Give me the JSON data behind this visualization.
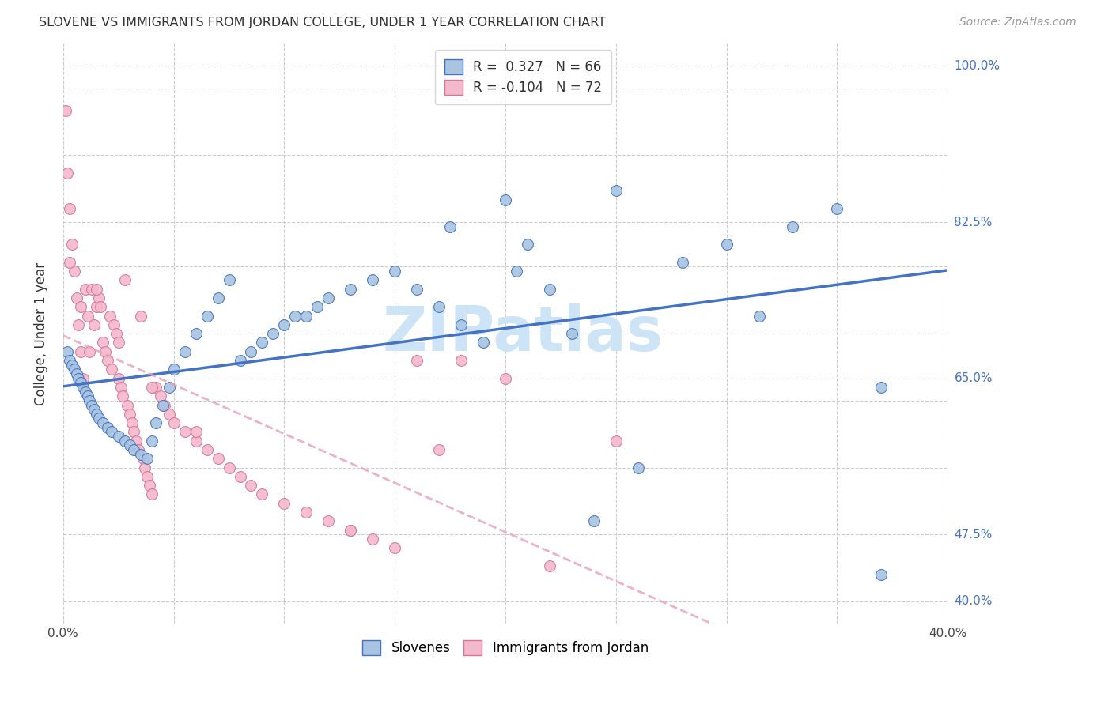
{
  "title": "SLOVENE VS IMMIGRANTS FROM JORDAN COLLEGE, UNDER 1 YEAR CORRELATION CHART",
  "source": "Source: ZipAtlas.com",
  "ylabel": "College, Under 1 year",
  "xlim": [
    0.0,
    0.4
  ],
  "ylim": [
    0.375,
    1.025
  ],
  "color_slovene_fill": "#a8c4e0",
  "color_slovene_edge": "#4472c4",
  "color_jordan_fill": "#f4b8cb",
  "color_jordan_edge": "#d4759a",
  "color_slovene_line": "#4472c4",
  "color_jordan_line": "#e8a0b8",
  "watermark_color": "#cce4f5",
  "legend_r1": "R =  0.327   N = 66",
  "legend_r2": "R = -0.104   N = 72",
  "background_color": "#ffffff",
  "slovene_x": [
    0.002,
    0.003,
    0.004,
    0.005,
    0.006,
    0.007,
    0.008,
    0.009,
    0.01,
    0.011,
    0.012,
    0.013,
    0.014,
    0.015,
    0.016,
    0.018,
    0.02,
    0.022,
    0.025,
    0.028,
    0.03,
    0.032,
    0.035,
    0.038,
    0.04,
    0.042,
    0.045,
    0.048,
    0.05,
    0.055,
    0.06,
    0.065,
    0.07,
    0.075,
    0.08,
    0.09,
    0.095,
    0.1,
    0.11,
    0.115,
    0.12,
    0.13,
    0.14,
    0.15,
    0.16,
    0.17,
    0.18,
    0.19,
    0.2,
    0.21,
    0.22,
    0.23,
    0.25,
    0.26,
    0.28,
    0.3,
    0.315,
    0.33,
    0.35,
    0.37,
    0.085,
    0.105,
    0.175,
    0.205,
    0.24,
    0.37
  ],
  "slovene_y": [
    0.68,
    0.67,
    0.665,
    0.66,
    0.655,
    0.65,
    0.645,
    0.64,
    0.635,
    0.63,
    0.625,
    0.62,
    0.615,
    0.61,
    0.605,
    0.6,
    0.595,
    0.59,
    0.585,
    0.58,
    0.575,
    0.57,
    0.565,
    0.56,
    0.58,
    0.6,
    0.62,
    0.64,
    0.66,
    0.68,
    0.7,
    0.72,
    0.74,
    0.76,
    0.67,
    0.69,
    0.7,
    0.71,
    0.72,
    0.73,
    0.74,
    0.75,
    0.76,
    0.77,
    0.75,
    0.73,
    0.71,
    0.69,
    0.85,
    0.8,
    0.75,
    0.7,
    0.86,
    0.55,
    0.78,
    0.8,
    0.72,
    0.82,
    0.84,
    0.64,
    0.68,
    0.72,
    0.82,
    0.77,
    0.49,
    0.43
  ],
  "jordan_x": [
    0.001,
    0.002,
    0.003,
    0.004,
    0.005,
    0.006,
    0.007,
    0.008,
    0.009,
    0.01,
    0.011,
    0.012,
    0.013,
    0.014,
    0.015,
    0.016,
    0.017,
    0.018,
    0.019,
    0.02,
    0.021,
    0.022,
    0.023,
    0.024,
    0.025,
    0.026,
    0.027,
    0.028,
    0.029,
    0.03,
    0.031,
    0.032,
    0.033,
    0.034,
    0.035,
    0.036,
    0.037,
    0.038,
    0.039,
    0.04,
    0.042,
    0.044,
    0.046,
    0.048,
    0.05,
    0.055,
    0.06,
    0.065,
    0.07,
    0.075,
    0.08,
    0.085,
    0.09,
    0.1,
    0.11,
    0.12,
    0.13,
    0.14,
    0.15,
    0.16,
    0.17,
    0.18,
    0.2,
    0.22,
    0.003,
    0.008,
    0.015,
    0.025,
    0.04,
    0.06,
    0.13,
    0.25
  ],
  "jordan_y": [
    0.95,
    0.88,
    0.84,
    0.8,
    0.77,
    0.74,
    0.71,
    0.68,
    0.65,
    0.75,
    0.72,
    0.68,
    0.75,
    0.71,
    0.73,
    0.74,
    0.73,
    0.69,
    0.68,
    0.67,
    0.72,
    0.66,
    0.71,
    0.7,
    0.65,
    0.64,
    0.63,
    0.76,
    0.62,
    0.61,
    0.6,
    0.59,
    0.58,
    0.57,
    0.72,
    0.56,
    0.55,
    0.54,
    0.53,
    0.52,
    0.64,
    0.63,
    0.62,
    0.61,
    0.6,
    0.59,
    0.58,
    0.57,
    0.56,
    0.55,
    0.54,
    0.53,
    0.52,
    0.51,
    0.5,
    0.49,
    0.48,
    0.47,
    0.46,
    0.67,
    0.57,
    0.67,
    0.65,
    0.44,
    0.78,
    0.73,
    0.75,
    0.69,
    0.64,
    0.59,
    0.48,
    0.58
  ]
}
